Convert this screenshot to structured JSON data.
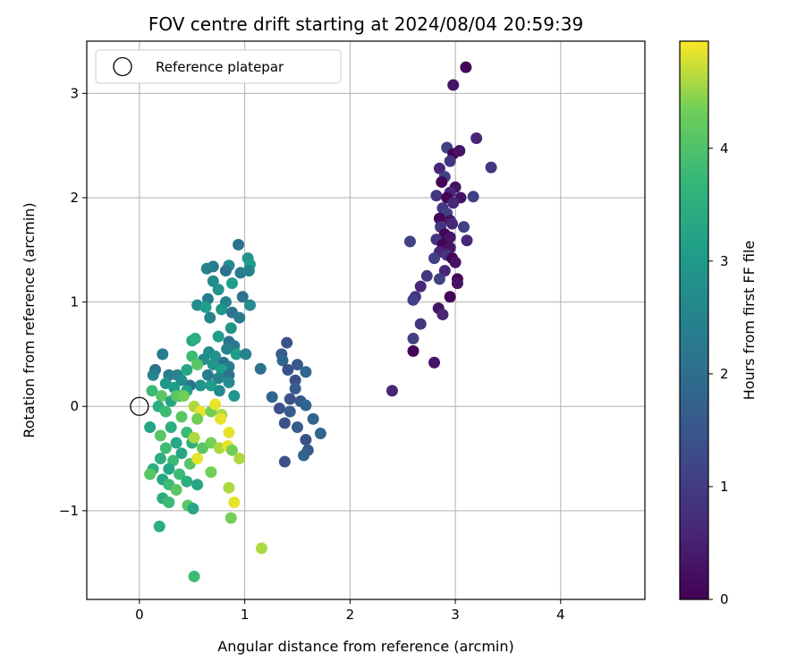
{
  "chart_data": {
    "type": "scatter",
    "title": "FOV centre drift starting at 2024/08/04 20:59:39",
    "xlabel": "Angular distance from reference (arcmin)",
    "ylabel": "Rotation from reference (arcmin)",
    "xlim": [
      -0.5,
      4.8
    ],
    "ylim": [
      -1.85,
      3.5
    ],
    "xticks": [
      "0",
      "1",
      "2",
      "3",
      "4"
    ],
    "yticks": [
      "−1",
      "0",
      "1",
      "2",
      "3"
    ],
    "grid": true,
    "legend": {
      "position": "top-left",
      "label": "Reference platepar"
    },
    "colorbar": {
      "label": "Hours from first FF file",
      "colormap": "viridis",
      "range": [
        0,
        4.95
      ],
      "ticks": [
        "0",
        "1",
        "2",
        "3",
        "4"
      ]
    },
    "reference_point": {
      "x": 0,
      "y": 0
    },
    "series": [
      {
        "hours": [
          0.05,
          0.3,
          0.6,
          0.9,
          1.1
        ],
        "points": [
          [
            3.1,
            3.25
          ],
          [
            2.98,
            3.08
          ],
          [
            3.2,
            2.57
          ],
          [
            3.34,
            2.29
          ],
          [
            2.92,
            2.48
          ],
          [
            2.98,
            2.42
          ],
          [
            3.04,
            2.45
          ],
          [
            2.85,
            2.28
          ],
          [
            2.95,
            2.35
          ],
          [
            2.9,
            2.2
          ],
          [
            2.87,
            2.15
          ],
          [
            3.0,
            2.1
          ],
          [
            2.95,
            2.05
          ],
          [
            2.82,
            2.02
          ],
          [
            3.17,
            2.01
          ],
          [
            2.92,
            2.0
          ],
          [
            3.05,
            2.0
          ],
          [
            2.98,
            1.95
          ],
          [
            2.88,
            1.9
          ],
          [
            2.92,
            1.85
          ],
          [
            2.85,
            1.8
          ],
          [
            2.95,
            1.78
          ],
          [
            2.97,
            1.75
          ],
          [
            2.86,
            1.72
          ],
          [
            3.08,
            1.72
          ],
          [
            2.9,
            1.65
          ],
          [
            2.95,
            1.62
          ],
          [
            3.11,
            1.59
          ],
          [
            2.82,
            1.6
          ],
          [
            2.57,
            1.58
          ],
          [
            2.88,
            1.55
          ],
          [
            2.95,
            1.52
          ],
          [
            2.85,
            1.48
          ],
          [
            2.92,
            1.45
          ],
          [
            2.8,
            1.42
          ],
          [
            2.97,
            1.42
          ],
          [
            3.0,
            1.38
          ],
          [
            2.9,
            1.3
          ],
          [
            2.73,
            1.25
          ],
          [
            2.85,
            1.22
          ],
          [
            3.02,
            1.22
          ],
          [
            3.02,
            1.18
          ],
          [
            2.67,
            1.15
          ],
          [
            2.62,
            1.05
          ],
          [
            2.6,
            1.02
          ],
          [
            2.95,
            1.05
          ],
          [
            2.84,
            0.94
          ],
          [
            2.88,
            0.88
          ],
          [
            2.67,
            0.79
          ],
          [
            2.6,
            0.65
          ],
          [
            2.6,
            0.53
          ],
          [
            2.8,
            0.42
          ],
          [
            2.4,
            0.15
          ]
        ]
      },
      {
        "hours": [
          1.4,
          1.6,
          1.8
        ],
        "points": [
          [
            1.4,
            0.61
          ],
          [
            1.35,
            0.5
          ],
          [
            1.36,
            0.44
          ],
          [
            1.41,
            0.35
          ],
          [
            1.5,
            0.4
          ],
          [
            1.58,
            0.33
          ],
          [
            1.48,
            0.25
          ],
          [
            1.48,
            0.17
          ],
          [
            1.26,
            0.09
          ],
          [
            1.43,
            0.07
          ],
          [
            1.53,
            0.05
          ],
          [
            1.58,
            0.01
          ],
          [
            1.33,
            -0.02
          ],
          [
            1.43,
            -0.05
          ],
          [
            1.65,
            -0.12
          ],
          [
            1.38,
            -0.16
          ],
          [
            1.5,
            -0.2
          ],
          [
            1.72,
            -0.26
          ],
          [
            1.58,
            -0.32
          ],
          [
            1.6,
            -0.42
          ],
          [
            1.56,
            -0.47
          ],
          [
            1.38,
            -0.53
          ]
        ]
      },
      {
        "hours": [
          2.1,
          2.3,
          2.5,
          2.7,
          2.9,
          3.1
        ],
        "points": [
          [
            0.94,
            1.55
          ],
          [
            0.7,
            1.34
          ],
          [
            0.64,
            1.32
          ],
          [
            0.85,
            1.35
          ],
          [
            1.03,
            1.42
          ],
          [
            1.05,
            1.36
          ],
          [
            0.82,
            1.3
          ],
          [
            0.96,
            1.28
          ],
          [
            1.04,
            1.3
          ],
          [
            0.7,
            1.2
          ],
          [
            0.75,
            1.12
          ],
          [
            0.88,
            1.18
          ],
          [
            0.98,
            1.05
          ],
          [
            0.65,
            1.03
          ],
          [
            0.82,
            1.0
          ],
          [
            0.55,
            0.97
          ],
          [
            0.78,
            0.93
          ],
          [
            0.63,
            0.95
          ],
          [
            0.88,
            0.9
          ],
          [
            0.95,
            0.85
          ],
          [
            0.67,
            0.85
          ],
          [
            1.05,
            0.97
          ],
          [
            0.87,
            0.75
          ],
          [
            0.75,
            0.67
          ],
          [
            0.85,
            0.62
          ],
          [
            0.9,
            0.58
          ],
          [
            0.83,
            0.55
          ],
          [
            0.66,
            0.52
          ],
          [
            0.72,
            0.48
          ],
          [
            0.92,
            0.5
          ],
          [
            0.8,
            0.42
          ],
          [
            0.85,
            0.38
          ],
          [
            1.01,
            0.5
          ],
          [
            0.61,
            0.45
          ],
          [
            0.7,
            0.4
          ],
          [
            0.78,
            0.35
          ],
          [
            0.85,
            0.3
          ],
          [
            0.65,
            0.3
          ],
          [
            0.75,
            0.27
          ],
          [
            0.85,
            0.23
          ],
          [
            0.58,
            0.2
          ],
          [
            0.68,
            0.2
          ],
          [
            0.48,
            0.2
          ],
          [
            0.28,
            0.3
          ],
          [
            0.36,
            0.3
          ],
          [
            0.4,
            0.25
          ],
          [
            0.25,
            0.22
          ],
          [
            0.33,
            0.18
          ],
          [
            0.15,
            0.35
          ],
          [
            0.22,
            0.5
          ],
          [
            0.13,
            0.3
          ],
          [
            0.76,
            0.15
          ],
          [
            0.9,
            0.1
          ],
          [
            0.45,
            0.15
          ],
          [
            1.15,
            0.36
          ]
        ]
      },
      {
        "hours": [
          3.3,
          3.5,
          3.8,
          4.1
        ],
        "points": [
          [
            0.5,
            0.63
          ],
          [
            0.53,
            0.65
          ],
          [
            0.5,
            0.48
          ],
          [
            0.55,
            0.4
          ],
          [
            0.45,
            0.35
          ],
          [
            0.38,
            0.1
          ],
          [
            0.12,
            0.15
          ],
          [
            0.21,
            0.1
          ],
          [
            0.3,
            0.05
          ],
          [
            0.18,
            0.0
          ],
          [
            0.25,
            -0.05
          ],
          [
            0.4,
            -0.1
          ],
          [
            0.1,
            -0.2
          ],
          [
            0.3,
            -0.2
          ],
          [
            0.45,
            -0.25
          ],
          [
            0.2,
            -0.28
          ],
          [
            0.35,
            -0.35
          ],
          [
            0.5,
            -0.35
          ],
          [
            0.25,
            -0.4
          ],
          [
            0.6,
            -0.4
          ],
          [
            0.4,
            -0.45
          ],
          [
            0.2,
            -0.5
          ],
          [
            0.32,
            -0.52
          ],
          [
            0.48,
            -0.55
          ],
          [
            0.28,
            -0.6
          ],
          [
            0.13,
            -0.6
          ],
          [
            0.38,
            -0.65
          ],
          [
            0.1,
            -0.65
          ],
          [
            0.22,
            -0.7
          ],
          [
            0.45,
            -0.72
          ],
          [
            0.28,
            -0.75
          ],
          [
            0.35,
            -0.8
          ],
          [
            0.55,
            -0.75
          ],
          [
            0.22,
            -0.88
          ],
          [
            0.28,
            -0.92
          ],
          [
            0.46,
            -0.95
          ],
          [
            0.51,
            -0.98
          ],
          [
            0.19,
            -1.15
          ],
          [
            0.52,
            -1.63
          ],
          [
            0.35,
            0.1
          ]
        ]
      },
      {
        "hours": [
          4.35,
          4.6,
          4.85
        ],
        "points": [
          [
            0.42,
            0.1
          ],
          [
            0.52,
            0.0
          ],
          [
            0.58,
            -0.05
          ],
          [
            0.68,
            -0.05
          ],
          [
            0.78,
            -0.08
          ],
          [
            0.72,
            0.02
          ],
          [
            0.55,
            -0.12
          ],
          [
            0.52,
            -0.3
          ],
          [
            0.85,
            -0.25
          ],
          [
            0.68,
            -0.35
          ],
          [
            0.76,
            -0.4
          ],
          [
            0.84,
            -0.38
          ],
          [
            0.88,
            -0.42
          ],
          [
            0.95,
            -0.5
          ],
          [
            0.55,
            -0.5
          ],
          [
            0.68,
            -0.63
          ],
          [
            0.85,
            -0.78
          ],
          [
            0.9,
            -0.92
          ],
          [
            0.87,
            -1.07
          ],
          [
            1.16,
            -1.36
          ],
          [
            0.77,
            -0.12
          ]
        ]
      }
    ]
  }
}
